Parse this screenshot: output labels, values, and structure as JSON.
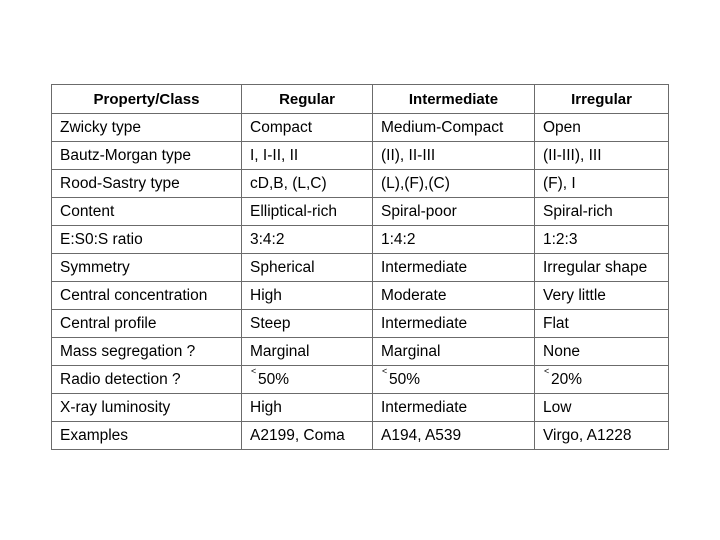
{
  "table": {
    "headers": [
      "Property/Class",
      "Regular",
      "Intermediate",
      "Irregular"
    ],
    "rows": [
      [
        "Zwicky type",
        "Compact",
        "Medium-Compact",
        "Open"
      ],
      [
        "Bautz-Morgan type",
        "I, I-II, II",
        "(II), II-III",
        "(II-III), III"
      ],
      [
        "Rood-Sastry type",
        "cD,B, (L,C)",
        "(L),(F),(C)",
        "(F), I"
      ],
      [
        "Content",
        "Elliptical-rich",
        "Spiral-poor",
        "Spiral-rich"
      ],
      [
        "E:S0:S ratio",
        "3:4:2",
        "1:4:2",
        "1:2:3"
      ],
      [
        "Symmetry",
        "Spherical",
        "Intermediate",
        "Irregular shape"
      ],
      [
        "Central concentration",
        "High",
        "Moderate",
        "Very little"
      ],
      [
        "Central profile",
        "Steep",
        "Intermediate",
        "Flat"
      ],
      [
        "Mass segregation ?",
        "Marginal",
        "Marginal",
        "None"
      ],
      [
        "Radio detection ?",
        "50%",
        "50%",
        "20%"
      ],
      [
        "X-ray luminosity",
        "High",
        "Intermediate",
        "Low"
      ],
      [
        "Examples",
        "A2199, Coma",
        "A194, A539",
        "Virgo, A1228"
      ]
    ],
    "approx_symbol": "approx-less-than-icon"
  }
}
